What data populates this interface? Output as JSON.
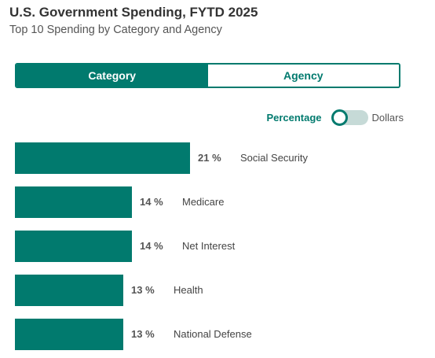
{
  "header": {
    "title": "U.S. Government Spending, FYTD 2025",
    "subtitle": "Top 10 Spending by Category and Agency"
  },
  "tabs": [
    {
      "label": "Category",
      "active": true
    },
    {
      "label": "Agency",
      "active": false
    }
  ],
  "view_switch": {
    "left_label": "Percentage",
    "right_label": "Dollars",
    "selected": "Percentage"
  },
  "colors": {
    "accent": "#017a6e"
  },
  "chart_data": {
    "type": "bar",
    "orientation": "horizontal",
    "unit": "%",
    "categories": [
      "Social Security",
      "Medicare",
      "Net Interest",
      "Health",
      "National Defense"
    ],
    "values": [
      21,
      14,
      14,
      13,
      13
    ],
    "value_labels": [
      "21 %",
      "14 %",
      "14 %",
      "13 %",
      "13 %"
    ]
  }
}
